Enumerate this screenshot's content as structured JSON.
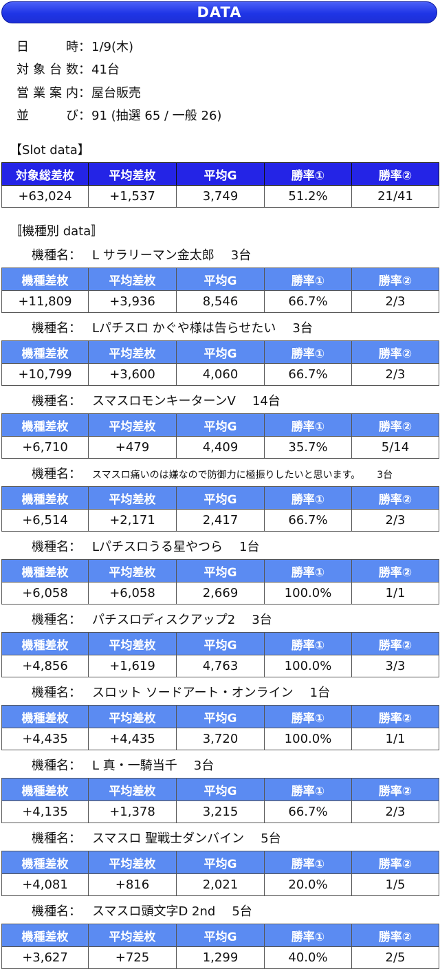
{
  "header": {
    "title": "DATA"
  },
  "info": [
    {
      "label": "日　時",
      "value": "1/9(木)"
    },
    {
      "label": "対象台数",
      "value": "41台"
    },
    {
      "label": "営業案内",
      "value": "屋台販売"
    },
    {
      "label": "並　び",
      "value": "91 (抽選 65 / 一般 26)"
    }
  ],
  "slot": {
    "title": "【Slot data】",
    "headers": [
      "対象総差枚",
      "平均差枚",
      "平均G",
      "勝率①",
      "勝率②"
    ],
    "values": [
      "+63,024",
      "+1,537",
      "3,749",
      "51.2%",
      "21/41"
    ]
  },
  "models_title": "〚機種別 data〛",
  "model_prefix": "機種名：",
  "model_headers": [
    "機種差枚",
    "平均差枚",
    "平均G",
    "勝率①",
    "勝率②"
  ],
  "models": [
    {
      "name": "L サラリーマン金太郎",
      "units": "3台",
      "values": [
        "+11,809",
        "+3,936",
        "8,546",
        "66.7%",
        "2/3"
      ]
    },
    {
      "name": "Lパチスロ かぐや様は告らせたい",
      "units": "3台",
      "values": [
        "+10,799",
        "+3,600",
        "4,060",
        "66.7%",
        "2/3"
      ]
    },
    {
      "name": "スマスロモンキーターンV",
      "units": "14台",
      "values": [
        "+6,710",
        "+479",
        "4,409",
        "35.7%",
        "5/14"
      ]
    },
    {
      "name": "スマスロ痛いのは嫌なので防御力に極振りしたいと思います。",
      "units": "3台",
      "values": [
        "+6,514",
        "+2,171",
        "2,417",
        "66.7%",
        "2/3"
      ]
    },
    {
      "name": "Lパチスロうる星やつら",
      "units": "1台",
      "values": [
        "+6,058",
        "+6,058",
        "2,669",
        "100.0%",
        "1/1"
      ]
    },
    {
      "name": "パチスロディスクアップ2",
      "units": "3台",
      "values": [
        "+4,856",
        "+1,619",
        "4,763",
        "100.0%",
        "3/3"
      ]
    },
    {
      "name": "スロット ソードアート・オンライン",
      "units": "1台",
      "values": [
        "+4,435",
        "+4,435",
        "3,720",
        "100.0%",
        "1/1"
      ]
    },
    {
      "name": "L 真・一騎当千",
      "units": "3台",
      "values": [
        "+4,135",
        "+1,378",
        "3,215",
        "66.7%",
        "2/3"
      ]
    },
    {
      "name": "スマスロ 聖戦士ダンバイン",
      "units": "5台",
      "values": [
        "+4,081",
        "+816",
        "2,021",
        "20.0%",
        "1/5"
      ]
    },
    {
      "name": "スマスロ頭文字D 2nd",
      "units": "5台",
      "values": [
        "+3,627",
        "+725",
        "1,299",
        "40.0%",
        "2/5"
      ]
    }
  ]
}
